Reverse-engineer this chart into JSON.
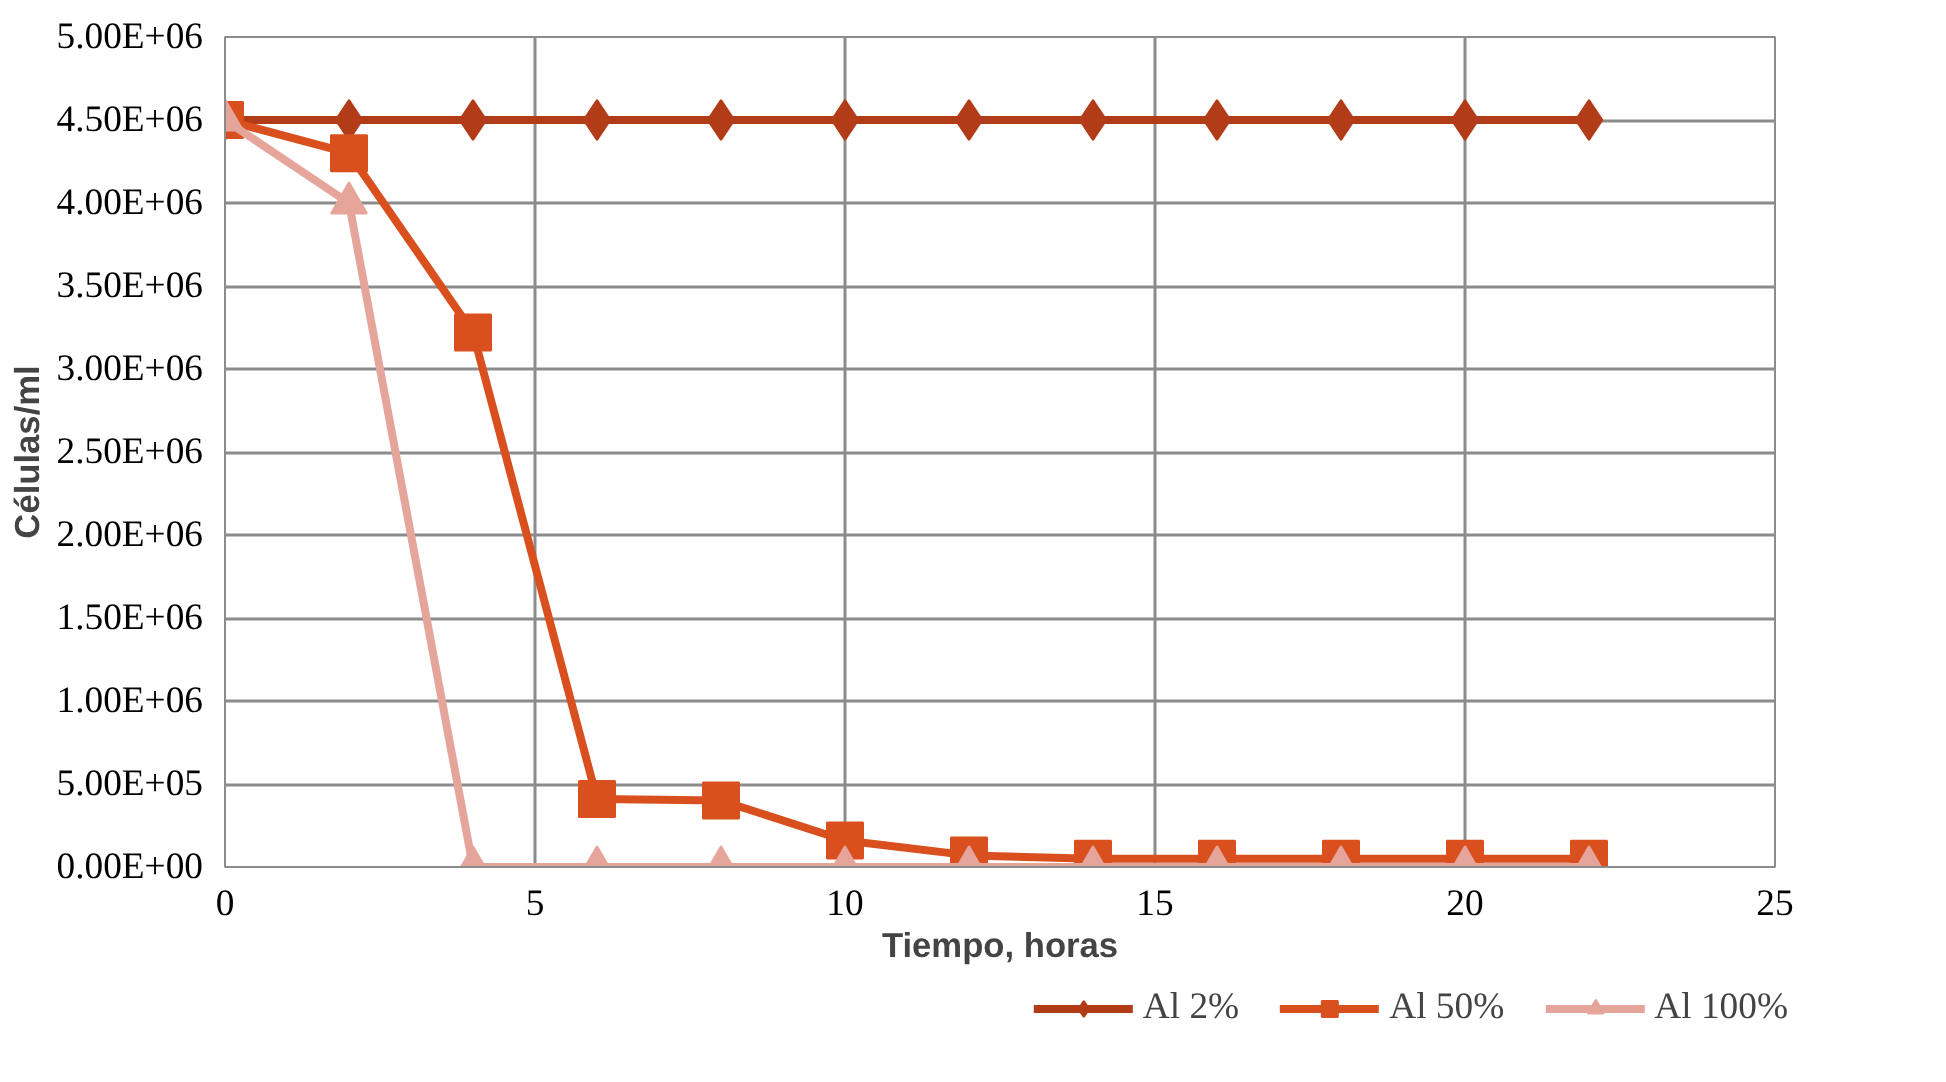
{
  "chart_data": {
    "type": "line",
    "xlabel": "Tiempo, horas",
    "ylabel": "Células/ml",
    "x": [
      0,
      2,
      4,
      6,
      8,
      10,
      12,
      14,
      16,
      18,
      20,
      22
    ],
    "series": [
      {
        "name": "Al 2%",
        "color": "#b23c17",
        "marker": "diamond",
        "values": [
          4500000,
          4500000,
          4500000,
          4500000,
          4500000,
          4500000,
          4500000,
          4500000,
          4500000,
          4500000,
          4500000,
          4500000
        ]
      },
      {
        "name": "Al 50%",
        "color": "#d9501e",
        "marker": "square",
        "values": [
          4500000,
          4300000,
          3220000,
          410000,
          400000,
          160000,
          70000,
          50000,
          50000,
          50000,
          50000,
          50000
        ]
      },
      {
        "name": "Al 100%",
        "color": "#e6a59a",
        "marker": "triangle",
        "values": [
          4500000,
          4000000,
          0,
          0,
          0,
          0,
          0,
          0,
          0,
          0,
          0,
          0
        ]
      }
    ],
    "xlim": [
      0,
      25
    ],
    "xticks": [
      0,
      5,
      10,
      15,
      20,
      25
    ],
    "ylim": [
      0,
      5000000
    ],
    "yticks": [
      {
        "value": 0,
        "label": "0.00E+00"
      },
      {
        "value": 500000,
        "label": "5.00E+05"
      },
      {
        "value": 1000000,
        "label": "1.00E+06"
      },
      {
        "value": 1500000,
        "label": "1.50E+06"
      },
      {
        "value": 2000000,
        "label": "2.00E+06"
      },
      {
        "value": 2500000,
        "label": "2.50E+06"
      },
      {
        "value": 3000000,
        "label": "3.00E+06"
      },
      {
        "value": 3500000,
        "label": "3.50E+06"
      },
      {
        "value": 4000000,
        "label": "4.00E+06"
      },
      {
        "value": 4500000,
        "label": "4.50E+06"
      },
      {
        "value": 5000000,
        "label": "5.00E+06"
      }
    ],
    "grid": true,
    "legend": "bottom",
    "line_style": "solid"
  }
}
